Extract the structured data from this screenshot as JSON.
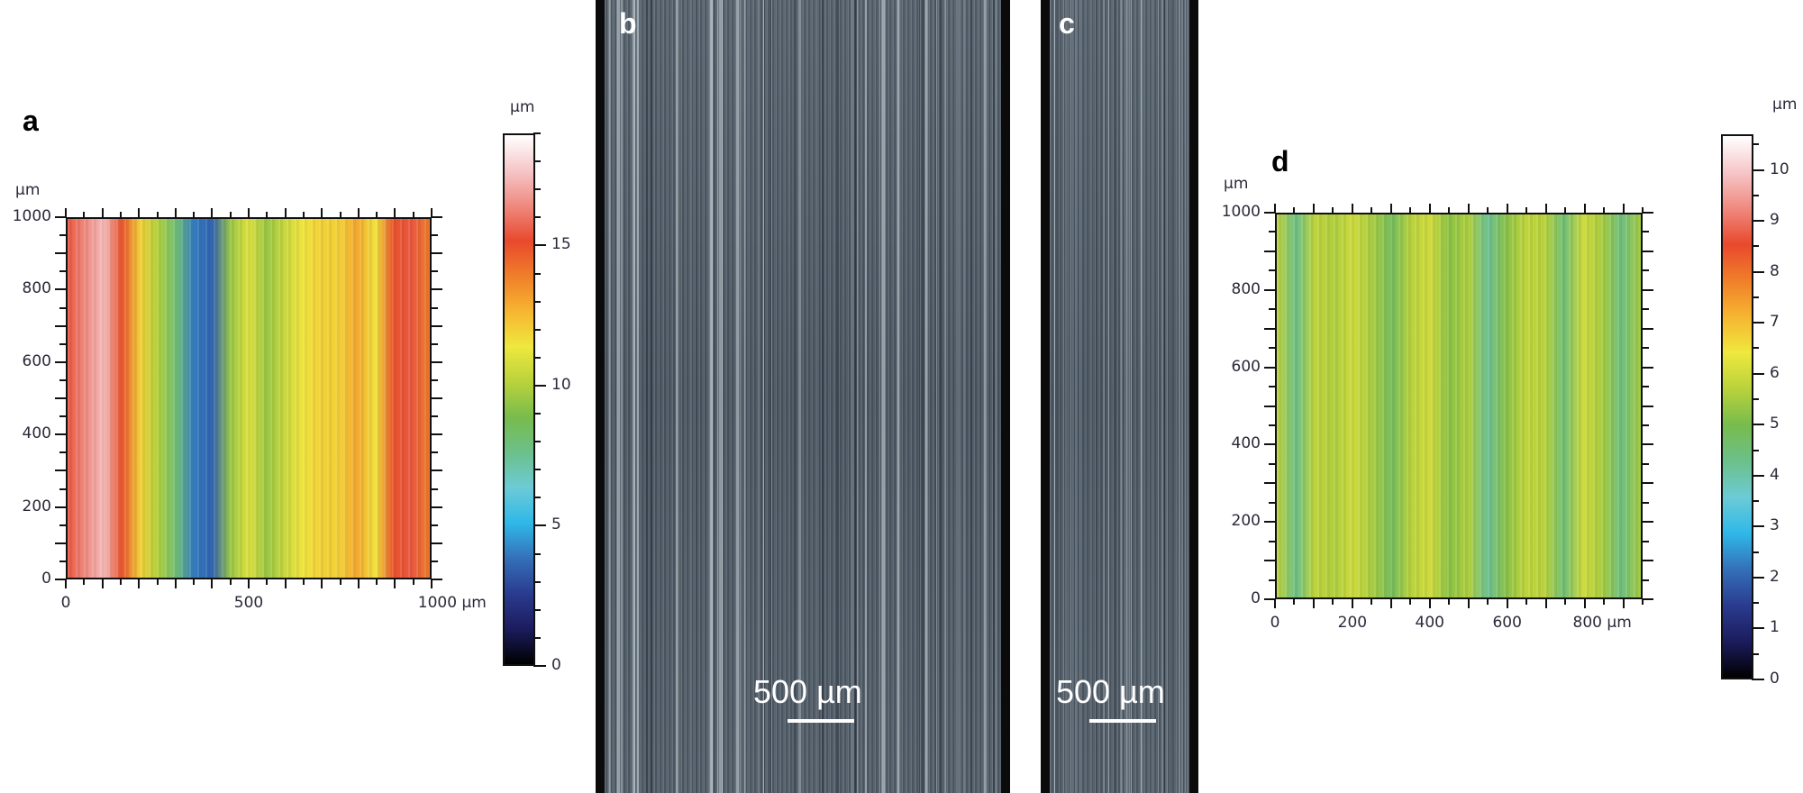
{
  "panels": {
    "a": {
      "label": "a"
    },
    "b": {
      "label": "b",
      "scale_bar_text": "500 µm"
    },
    "c": {
      "label": "c",
      "scale_bar_text": "500 µm"
    },
    "d": {
      "label": "d"
    }
  },
  "colors": {
    "cmap": [
      "#000000",
      "#1c1c5e",
      "#2a3b8f",
      "#3470b8",
      "#2fb8e8",
      "#6ccbd6",
      "#6cc08a",
      "#78bc4c",
      "#b9d23c",
      "#efe83e",
      "#f6b531",
      "#f07f2a",
      "#e8492c",
      "#ef8a80",
      "#f6c6c8",
      "#ffffff"
    ],
    "photo_base": "#55606a",
    "frame": "#0b0b0b"
  },
  "chart_data": [
    {
      "type": "heatmap",
      "panel": "a",
      "title": "",
      "xlabel": "µm",
      "ylabel": "µm",
      "x_range": [
        0,
        1000
      ],
      "y_range": [
        0,
        1000
      ],
      "x_ticks": [
        "0",
        "500",
        "1000 µm"
      ],
      "y_ticks": [
        "0",
        "200",
        "400",
        "600",
        "800",
        "1000"
      ],
      "y_unit": "µm",
      "colorbar": {
        "unit": "µm",
        "range": [
          0,
          19
        ],
        "ticks": [
          "0",
          "5",
          "10",
          "15"
        ]
      },
      "column_profile_x": [
        0,
        50,
        100,
        150,
        200,
        250,
        300,
        350,
        400,
        450,
        500,
        550,
        600,
        650,
        700,
        750,
        800,
        850,
        900,
        950,
        1000
      ],
      "column_profile_height": [
        15.5,
        16.5,
        17.5,
        15,
        12,
        10,
        8,
        4,
        3.5,
        9.5,
        11,
        9.5,
        10.5,
        11.5,
        12,
        12,
        13,
        11.5,
        15,
        15.5,
        14
      ],
      "grid": false,
      "legend": "colorbar right"
    },
    {
      "type": "heatmap",
      "panel": "d",
      "title": "",
      "xlabel": "µm",
      "ylabel": "µm",
      "x_range": [
        0,
        950
      ],
      "y_range": [
        0,
        1000
      ],
      "x_ticks": [
        "0",
        "200",
        "400",
        "600",
        "800 µm"
      ],
      "y_ticks": [
        "0",
        "200",
        "400",
        "600",
        "800",
        "1000"
      ],
      "y_unit": "µm",
      "colorbar": {
        "unit": "µm",
        "range": [
          0,
          10.7
        ],
        "ticks": [
          "0",
          "1",
          "2",
          "3",
          "4",
          "5",
          "6",
          "7",
          "8",
          "9",
          "10"
        ]
      },
      "column_profile_x": [
        0,
        50,
        100,
        150,
        200,
        250,
        300,
        350,
        400,
        450,
        500,
        550,
        600,
        650,
        700,
        750,
        800,
        850,
        900,
        950
      ],
      "column_profile_height": [
        5.8,
        4.3,
        5.8,
        5.6,
        6,
        5.5,
        4.8,
        5.7,
        6,
        5.2,
        5.6,
        4.2,
        5.2,
        5.8,
        5.7,
        4.5,
        6,
        5.5,
        4.4,
        5.5
      ],
      "grid": false,
      "legend": "colorbar right"
    }
  ]
}
